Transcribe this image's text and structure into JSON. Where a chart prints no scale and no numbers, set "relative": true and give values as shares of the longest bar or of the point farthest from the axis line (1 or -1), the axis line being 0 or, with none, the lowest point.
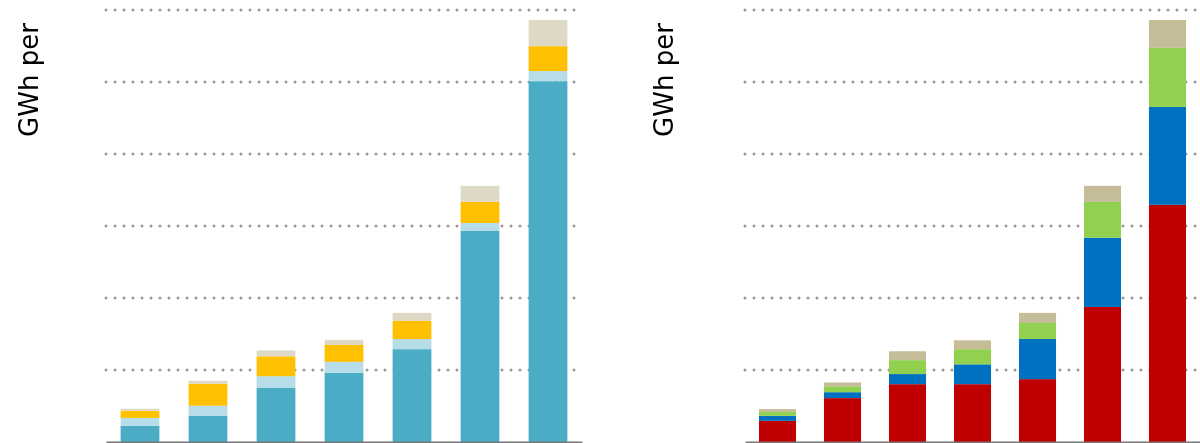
{
  "chart_data": [
    {
      "type": "bar",
      "stacked": true,
      "relative": true,
      "grid": "y",
      "ylabel": "GWh per",
      "categories": [
        null,
        null,
        null,
        null,
        null,
        null,
        null
      ],
      "series": [
        {
          "color": "#4bacc6",
          "values": [
            0.038,
            0.062,
            0.128,
            0.164,
            0.22,
            0.5,
            0.855
          ]
        },
        {
          "color": "#b7dde8",
          "values": [
            0.019,
            0.024,
            0.028,
            0.026,
            0.024,
            0.019,
            0.024
          ]
        },
        {
          "color": "#ffc000",
          "values": [
            0.017,
            0.052,
            0.047,
            0.04,
            0.043,
            0.05,
            0.059
          ]
        },
        {
          "color": "#ddd9c4",
          "values": [
            0.005,
            0.007,
            0.014,
            0.012,
            0.019,
            0.038,
            0.062
          ]
        }
      ]
    },
    {
      "type": "bar",
      "stacked": true,
      "relative": true,
      "grid": "y",
      "ylabel": "GWh per",
      "categories": [
        null,
        null,
        null,
        null,
        null,
        null,
        null
      ],
      "series": [
        {
          "color": "#c00000",
          "values": [
            0.05,
            0.104,
            0.137,
            0.137,
            0.149,
            0.32,
            0.562
          ]
        },
        {
          "color": "#0070c0",
          "values": [
            0.012,
            0.014,
            0.024,
            0.047,
            0.095,
            0.164,
            0.232
          ]
        },
        {
          "color": "#92d050",
          "values": [
            0.009,
            0.014,
            0.033,
            0.036,
            0.038,
            0.085,
            0.14
          ]
        },
        {
          "color": "#c4bd97",
          "values": [
            0.007,
            0.009,
            0.021,
            0.021,
            0.024,
            0.038,
            0.066
          ]
        }
      ]
    }
  ]
}
